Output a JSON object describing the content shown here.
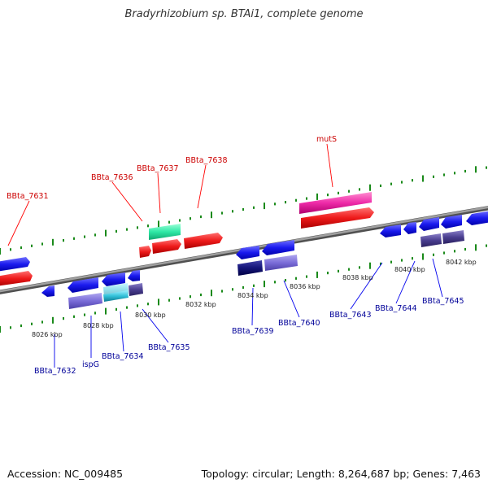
{
  "title": "Bradyrhizobium sp. BTAi1, complete genome",
  "accession": "Accession: NC_009485",
  "summary": "Topology: circular; Length: 8,264,687 bp; Genes: 7,463",
  "colors": {
    "label_forward": "#cc0000",
    "label_reverse": "#000099",
    "backbone": "#808080",
    "tick": "#1a8a1a"
  },
  "kbp_ticks": [
    "8026 kbp",
    "8028 kbp",
    "8030 kbp",
    "8032 kbp",
    "8034 kbp",
    "8036 kbp",
    "8038 kbp",
    "8040 kbp",
    "8042 kbp"
  ],
  "forward_labels": [
    "BBta_7631",
    "BBta_7636",
    "BBta_7637",
    "BBta_7638",
    "mutS"
  ],
  "reverse_labels": [
    "BBta_7632",
    "ispG",
    "BBta_7634",
    "BBta_7635",
    "BBta_7639",
    "BBta_7640",
    "BBta_7643",
    "BBta_7644",
    "BBta_7645"
  ]
}
